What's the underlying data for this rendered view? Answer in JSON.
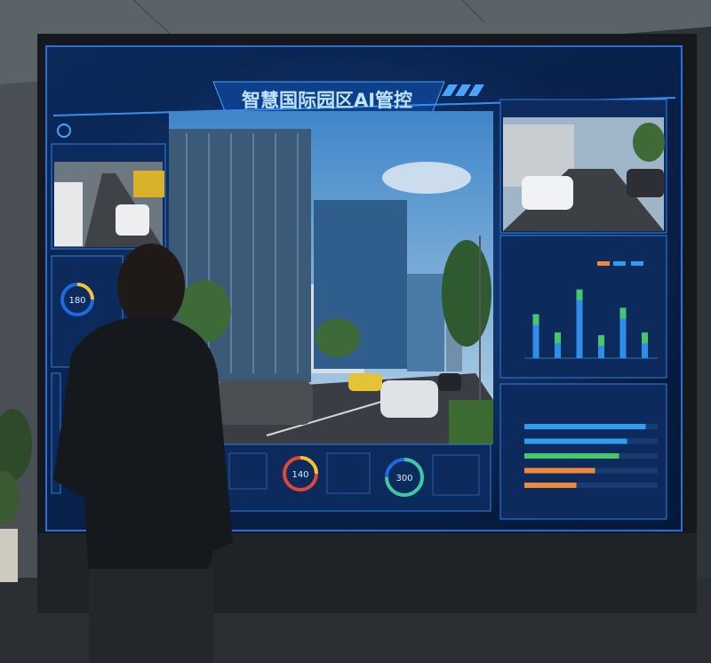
{
  "header": {
    "title": "智慧国际园区AI管控"
  },
  "gauges": [
    {
      "label": "180"
    },
    {
      "label": "140"
    },
    {
      "label": "300"
    }
  ],
  "traffic_chart": {
    "type": "bar",
    "values": [
      48,
      28,
      75,
      25,
      55,
      28
    ],
    "color": "#2f8fe8",
    "cap_color": "#45c86a",
    "ylim": [
      0,
      100
    ]
  },
  "ranking_chart": {
    "type": "bar",
    "values": [
      91,
      77,
      71,
      53,
      39
    ],
    "colors": [
      "#2f9df0",
      "#2f9df0",
      "#45c86a",
      "#f08a3a",
      "#f08a3a"
    ],
    "xlim": [
      0,
      100
    ]
  }
}
